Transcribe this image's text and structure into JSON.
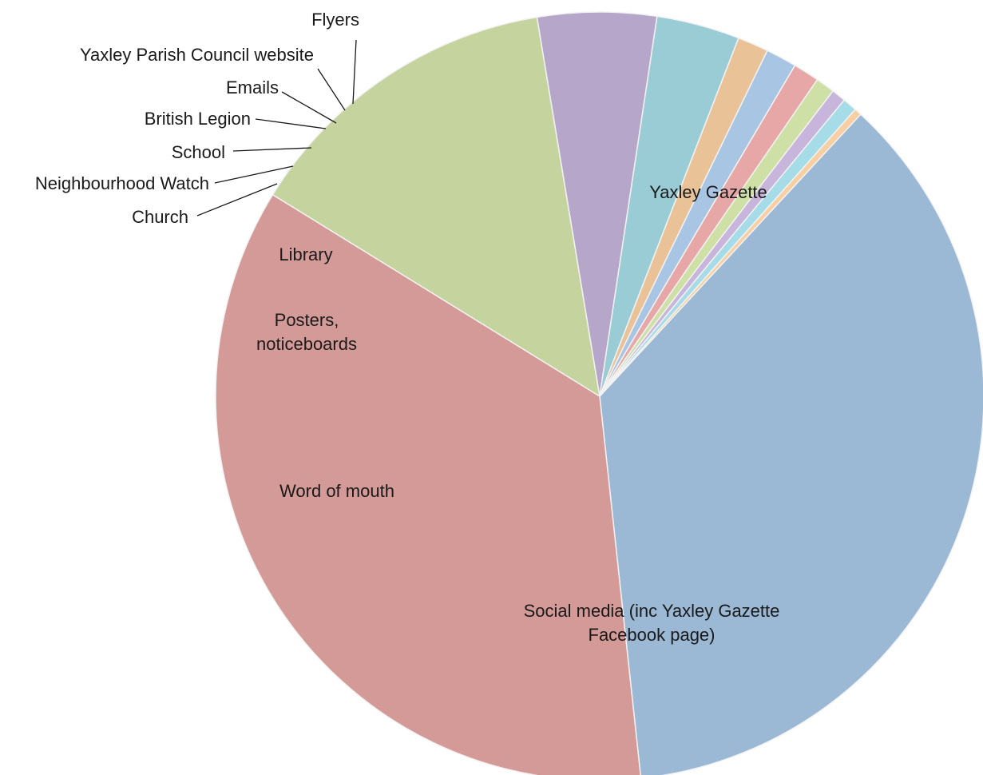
{
  "chart_data": {
    "type": "pie",
    "title": "",
    "slices": [
      {
        "label": "Yaxley Gazette",
        "value": 36.4,
        "color": "#9bb8d4"
      },
      {
        "label": "Social media (inc Yaxley Gazette Facebook page)",
        "value": 35.5,
        "color": "#d49a97"
      },
      {
        "label": "Word of mouth",
        "value": 13.6,
        "color": "#c5d49f"
      },
      {
        "label": "Posters, noticeboards",
        "value": 5.0,
        "color": "#b6a6c9"
      },
      {
        "label": "Library",
        "value": 3.5,
        "color": "#9accd6"
      },
      {
        "label": "Church",
        "value": 1.3,
        "color": "#eac298"
      },
      {
        "label": "Neighbourhood Watch",
        "value": 1.3,
        "color": "#a9c5e4"
      },
      {
        "label": "School",
        "value": 1.1,
        "color": "#e8a7a7"
      },
      {
        "label": "British Legion",
        "value": 0.8,
        "color": "#cfe0a6"
      },
      {
        "label": "Emails",
        "value": 0.6,
        "color": "#c8b5dc"
      },
      {
        "label": "Yaxley Parish Council website",
        "value": 0.6,
        "color": "#a6dbe8"
      },
      {
        "label": "Flyers",
        "value": 0.3,
        "color": "#f8cfa2"
      }
    ]
  }
}
